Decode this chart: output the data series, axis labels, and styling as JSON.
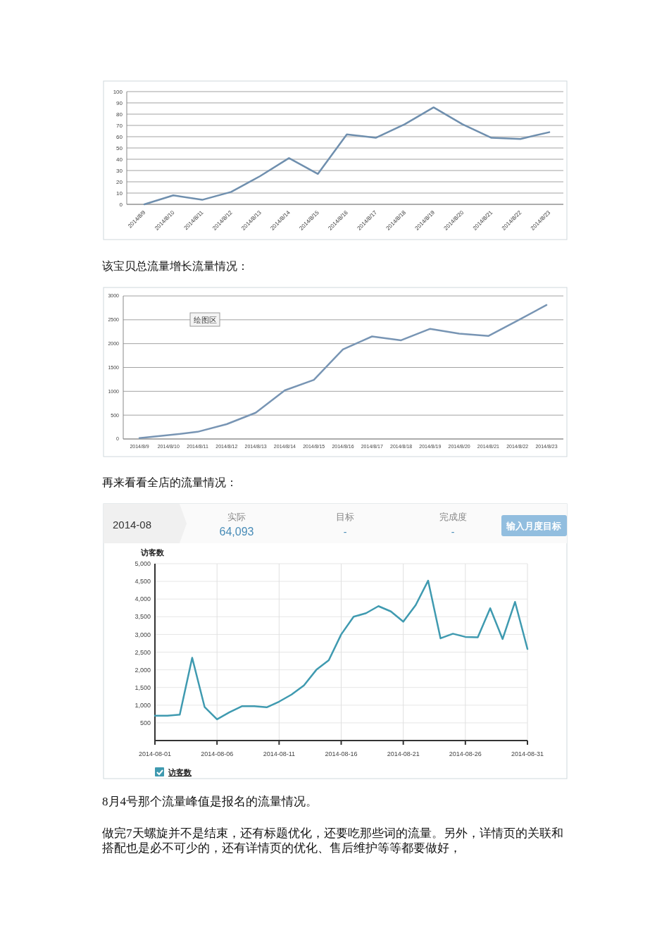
{
  "chart_data": [
    {
      "type": "line",
      "categories": [
        "2014/8/9",
        "2014/8/10",
        "2014/8/11",
        "2014/8/12",
        "2014/8/13",
        "2014/8/14",
        "2014/8/15",
        "2014/8/16",
        "2014/8/17",
        "2014/8/18",
        "2014/8/19",
        "2014/8/20",
        "2014/8/21",
        "2014/8/22",
        "2014/8/23"
      ],
      "values": [
        0,
        8,
        4,
        11,
        25,
        41,
        27,
        62,
        59,
        71,
        86,
        71,
        59,
        58,
        64
      ],
      "color": "#6f8fae",
      "ylim": [
        0,
        100
      ],
      "yticks": [
        0,
        10,
        20,
        30,
        40,
        50,
        60,
        70,
        80,
        90,
        100
      ],
      "grid": "y",
      "legend": false
    },
    {
      "type": "line",
      "title": "该宝贝总流量增长流量情况：",
      "annotations": [
        "绘图区"
      ],
      "categories": [
        "2014/8/9",
        "2014/8/10",
        "2014/8/11",
        "2014/8/12",
        "2014/8/13",
        "2014/8/14",
        "2014/8/15",
        "2014/8/16",
        "2014/8/17",
        "2014/8/18",
        "2014/8/19",
        "2014/8/20",
        "2014/8/21",
        "2014/8/22",
        "2014/8/23"
      ],
      "values": [
        20,
        80,
        150,
        310,
        550,
        1020,
        1240,
        1880,
        2150,
        2070,
        2310,
        2210,
        2160,
        2480,
        2810
      ],
      "color": "#7895b4",
      "ylim": [
        0,
        3000
      ],
      "yticks": [
        0,
        500,
        1000,
        1500,
        2000,
        2500,
        3000
      ],
      "grid": "y",
      "legend": false
    },
    {
      "type": "line",
      "title": "再来看看全店的流量情况：",
      "ylabel": "访客数",
      "annotations": [
        "2014-08",
        "实际",
        "64,093",
        "目标",
        "-",
        "完成度",
        "-",
        "输入月度目标",
        "8月4号那个流量峰值是报名的流量情况。",
        "做完7天螺旋并不是结束，还有标题优化，还要吃那些词的流量。另外，详情页的关联和搭配也是必不可少的，还有详情页的优化、售后维护等等都要做好，"
      ],
      "x": [
        "2014-08-01",
        "2014-08-02",
        "2014-08-03",
        "2014-08-04",
        "2014-08-05",
        "2014-08-06",
        "2014-08-07",
        "2014-08-08",
        "2014-08-09",
        "2014-08-10",
        "2014-08-11",
        "2014-08-12",
        "2014-08-13",
        "2014-08-14",
        "2014-08-15",
        "2014-08-16",
        "2014-08-17",
        "2014-08-18",
        "2014-08-19",
        "2014-08-20",
        "2014-08-21",
        "2014-08-22",
        "2014-08-23",
        "2014-08-24",
        "2014-08-25",
        "2014-08-26",
        "2014-08-27",
        "2014-08-28",
        "2014-08-29",
        "2014-08-30",
        "2014-08-31"
      ],
      "series": [
        {
          "name": "访客数",
          "color": "#3f9ab0",
          "values": [
            700,
            700,
            730,
            2340,
            950,
            600,
            800,
            970,
            970,
            940,
            1100,
            1300,
            1560,
            2000,
            2270,
            3000,
            3500,
            3600,
            3800,
            3650,
            3360,
            3830,
            4520,
            2890,
            3020,
            2930,
            2920,
            3740,
            2870,
            3920,
            2590
          ]
        }
      ],
      "xlim": [
        "2014-08-01",
        "2014-08-31"
      ],
      "xticks": [
        "2014-08-01",
        "2014-08-06",
        "2014-08-11",
        "2014-08-16",
        "2014-08-21",
        "2014-08-26",
        "2014-08-31"
      ],
      "ylim": [
        0,
        5000
      ],
      "yticks": [
        {
          "value": 500,
          "label": "500"
        },
        {
          "value": 1000,
          "label": "1,000"
        },
        {
          "value": 1500,
          "label": "1,500"
        },
        {
          "value": 2000,
          "label": "2,000"
        },
        {
          "value": 2500,
          "label": "2,500"
        },
        {
          "value": 3000,
          "label": "3,000"
        },
        {
          "value": 3500,
          "label": "3,500"
        },
        {
          "value": 4000,
          "label": "4,000"
        },
        {
          "value": 4500,
          "label": "4,500"
        },
        {
          "value": 5000,
          "label": "5,000"
        }
      ],
      "grid": true,
      "legend": "bottom left"
    }
  ]
}
